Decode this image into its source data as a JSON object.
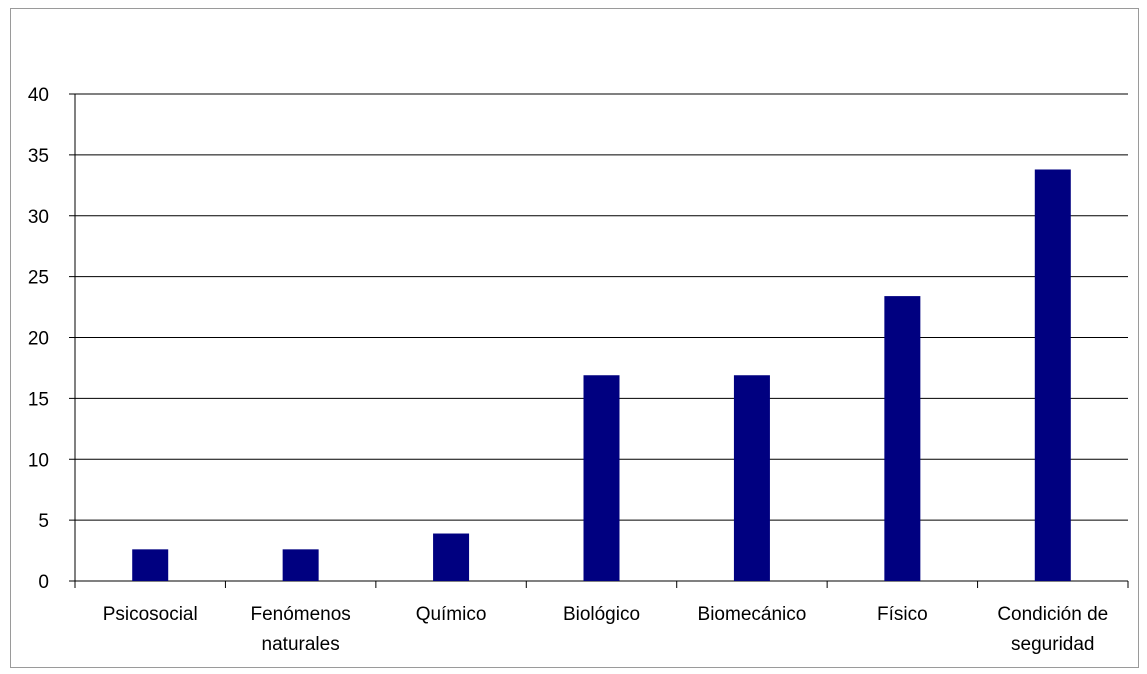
{
  "chart_data": {
    "type": "bar",
    "categories": [
      [
        "Psicosocial"
      ],
      [
        "Fenómenos",
        "naturales"
      ],
      [
        "Químico"
      ],
      [
        "Biológico"
      ],
      [
        "Biomecánico"
      ],
      [
        "Físico"
      ],
      [
        "Condición de",
        "seguridad"
      ]
    ],
    "values": [
      2.6,
      2.6,
      3.9,
      16.9,
      16.9,
      23.4,
      33.8
    ],
    "ylim": [
      0,
      40
    ],
    "yticks": [
      0,
      5,
      10,
      15,
      20,
      25,
      30,
      35,
      40
    ],
    "title": "",
    "xlabel": "",
    "ylabel": "",
    "grid": true,
    "bar_color": "#000080",
    "grid_color": "#000000",
    "frame_color": "#9a9a9a"
  }
}
